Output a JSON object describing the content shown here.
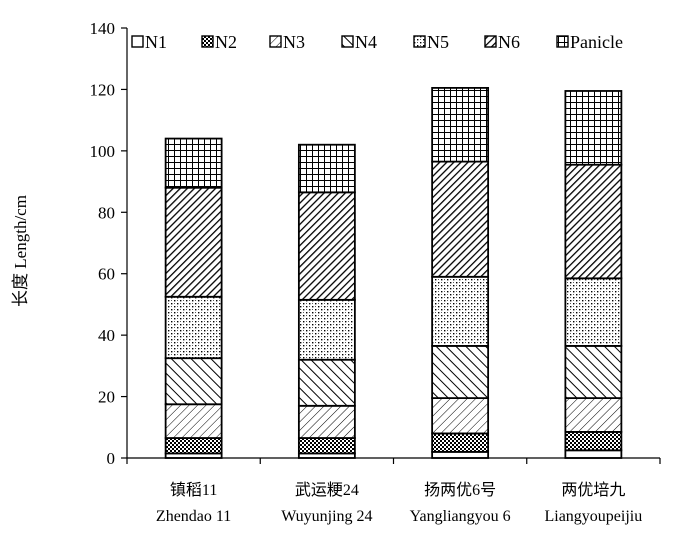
{
  "chart_data": {
    "type": "bar",
    "stacked": true,
    "title": "",
    "xlabel": "",
    "ylabel": "长度 Length/cm",
    "ylim": [
      0,
      140
    ],
    "yticks": [
      0,
      20,
      40,
      60,
      80,
      100,
      120,
      140
    ],
    "grid": false,
    "legend": "top",
    "categories": [
      {
        "cn": "镇稻11",
        "en": "Zhendao 11"
      },
      {
        "cn": "武运粳24",
        "en": "Wuyunjing 24"
      },
      {
        "cn": "扬两优6号",
        "en": "Yangliangyou 6"
      },
      {
        "cn": "两优培九",
        "en": "Liangyoupeijiu"
      }
    ],
    "series": [
      {
        "name": "N1",
        "pattern": "blank",
        "values": [
          1.5,
          1.5,
          2.0,
          2.5
        ]
      },
      {
        "name": "N2",
        "pattern": "checker",
        "values": [
          5.0,
          5.0,
          6.0,
          6.0
        ]
      },
      {
        "name": "N3",
        "pattern": "light-diagonal",
        "values": [
          11.0,
          10.5,
          11.5,
          11.0
        ]
      },
      {
        "name": "N4",
        "pattern": "wide-diagonal",
        "values": [
          15.0,
          15.0,
          17.0,
          17.0
        ]
      },
      {
        "name": "N5",
        "pattern": "dotted-grid",
        "values": [
          20.0,
          19.5,
          22.5,
          22.0
        ]
      },
      {
        "name": "N6",
        "pattern": "dense-diagonal",
        "values": [
          35.5,
          35.0,
          37.5,
          37.0
        ]
      },
      {
        "name": "Panicle",
        "pattern": "grid",
        "values": [
          16.0,
          15.5,
          24.0,
          24.0
        ]
      }
    ]
  }
}
